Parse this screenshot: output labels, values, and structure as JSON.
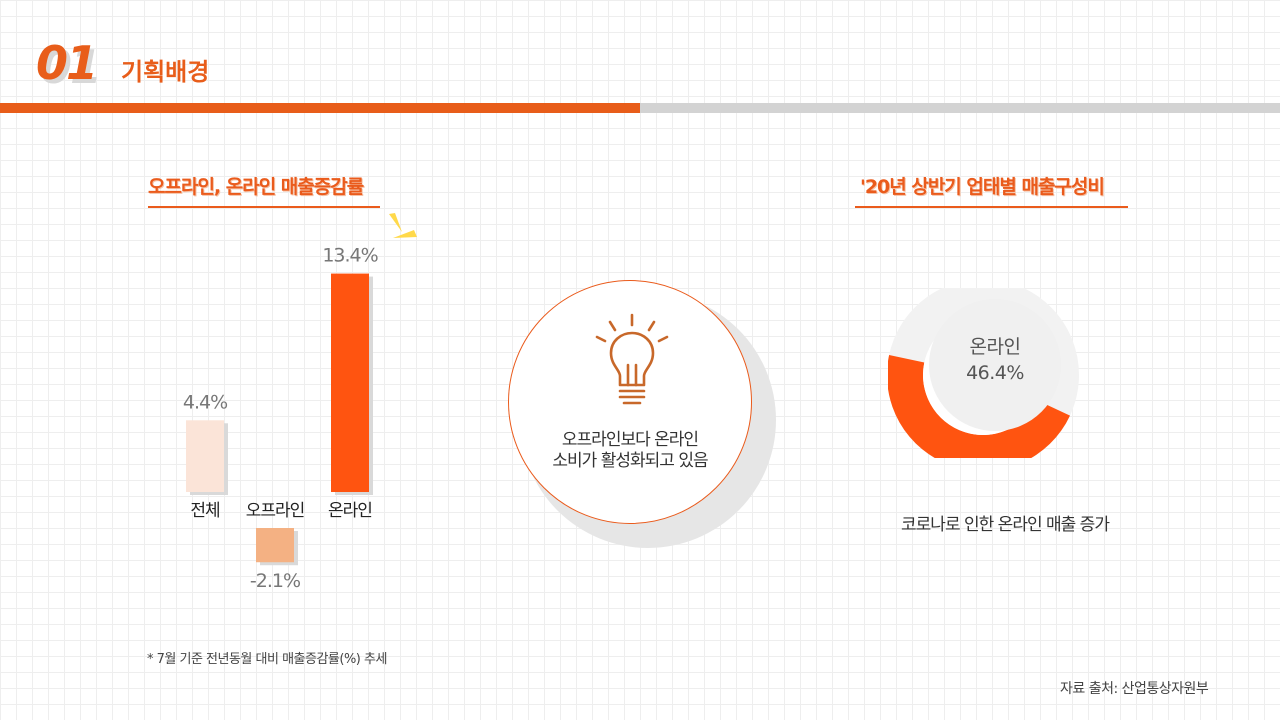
{
  "header": {
    "section_number": "01",
    "section_title": "기획배경"
  },
  "chart_data": [
    {
      "type": "bar",
      "title": "오프라인, 온라인 매출증감률",
      "categories": [
        "전체",
        "오프라인",
        "온라인"
      ],
      "values": [
        4.4,
        -2.1,
        13.4
      ],
      "value_labels": [
        "4.4%",
        "-2.1%",
        "13.4%"
      ],
      "colors": [
        "#fbe4d8",
        "#f4b183",
        "#ff5410"
      ],
      "ylim": [
        -3,
        14
      ],
      "grid": false,
      "note": "* 7월 기준 전년동월 대비 매출증감률(%) 추세"
    },
    {
      "type": "pie",
      "title": "'20년 상반기 업태별 매출구성비",
      "slices": [
        {
          "label": "온라인",
          "value": 46.4,
          "value_label": "46.4%",
          "color": "#ff5410"
        },
        {
          "label": "",
          "value": 53.6,
          "color": "#f2f2f2"
        }
      ],
      "caption": "코로나로 인한 온라인 매출 증가",
      "source": "자료 출처: 산업통상자원부"
    }
  ],
  "center_callout": {
    "icon": "lightbulb-icon",
    "line1": "오프라인보다 온라인",
    "line2": "소비가 활성화되고 있음"
  }
}
